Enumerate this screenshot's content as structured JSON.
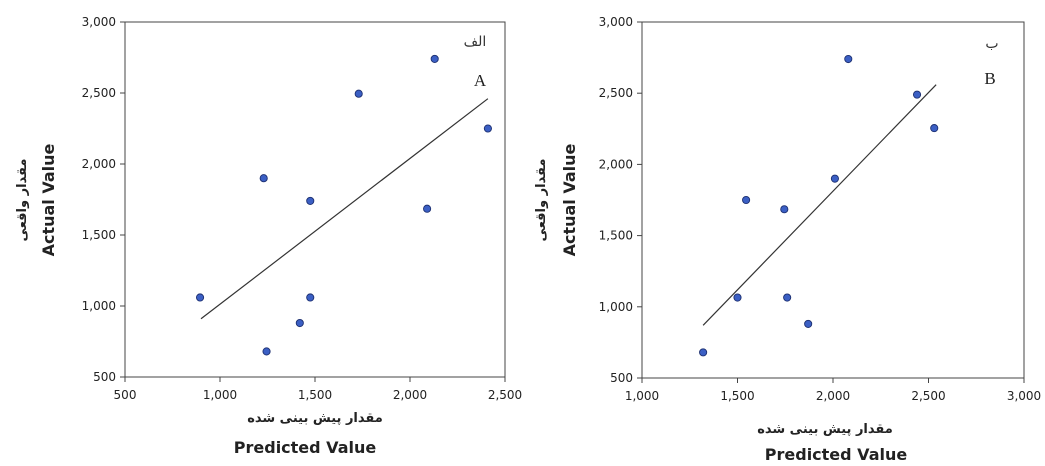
{
  "chart_data": [
    {
      "type": "scatter",
      "panel_label_fa": "الف",
      "panel_label_en": "A",
      "xlabel_fa": "مقدار پیش بینی شده",
      "xlabel_en": "Predicted Value",
      "ylabel_fa": "مقدار واقعی",
      "ylabel_en": "Actual Value",
      "xlim": [
        500,
        2500
      ],
      "ylim": [
        500,
        3000
      ],
      "xticks": [
        500,
        1000,
        1500,
        2000,
        2500
      ],
      "yticks": [
        500,
        1000,
        1500,
        2000,
        2500,
        3000
      ],
      "xtick_labels": [
        "500",
        "1,000",
        "1,500",
        "2,000",
        "2,500"
      ],
      "ytick_labels": [
        "500",
        "1,000",
        "1,500",
        "2,000",
        "2,500",
        "3,000"
      ],
      "points": [
        {
          "x": 895,
          "y": 1060
        },
        {
          "x": 1230,
          "y": 1900
        },
        {
          "x": 1245,
          "y": 680
        },
        {
          "x": 1420,
          "y": 880
        },
        {
          "x": 1475,
          "y": 1740
        },
        {
          "x": 1475,
          "y": 1060
        },
        {
          "x": 1730,
          "y": 2495
        },
        {
          "x": 2090,
          "y": 1685
        },
        {
          "x": 2130,
          "y": 2740
        },
        {
          "x": 2410,
          "y": 2250
        }
      ],
      "trendline": [
        {
          "x": 900,
          "y": 910
        },
        {
          "x": 2410,
          "y": 2460
        }
      ],
      "grid": false,
      "marker_color": "#3b5fc4"
    },
    {
      "type": "scatter",
      "panel_label_fa": "ب",
      "panel_label_en": "B",
      "xlabel_fa": "مقدار پیش بینی شده",
      "xlabel_en": "Predicted Value",
      "ylabel_fa": "مقدار واقعی",
      "ylabel_en": "Actual Value",
      "xlim": [
        1000,
        3000
      ],
      "ylim": [
        500,
        3000
      ],
      "xticks": [
        1000,
        1500,
        2000,
        2500,
        3000
      ],
      "yticks": [
        500,
        1000,
        1500,
        2000,
        2500,
        3000
      ],
      "xtick_labels": [
        "1,000",
        "1,500",
        "2,000",
        "2,500",
        "3,000"
      ],
      "ytick_labels": [
        "500",
        "1,000",
        "1,500",
        "2,000",
        "2,500",
        "3,000"
      ],
      "points": [
        {
          "x": 1320,
          "y": 680
        },
        {
          "x": 1500,
          "y": 1065
        },
        {
          "x": 1545,
          "y": 1750
        },
        {
          "x": 1745,
          "y": 1685
        },
        {
          "x": 1760,
          "y": 1065
        },
        {
          "x": 1870,
          "y": 880
        },
        {
          "x": 2010,
          "y": 1900
        },
        {
          "x": 2080,
          "y": 2740
        },
        {
          "x": 2440,
          "y": 2490
        },
        {
          "x": 2530,
          "y": 2255
        }
      ],
      "trendline": [
        {
          "x": 1320,
          "y": 870
        },
        {
          "x": 2540,
          "y": 2560
        }
      ],
      "grid": false,
      "marker_color": "#3b5fc4"
    }
  ]
}
